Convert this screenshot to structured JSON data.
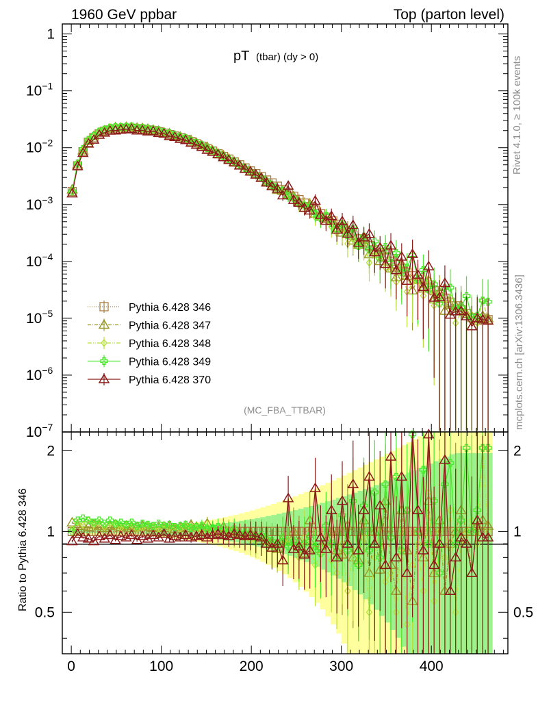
{
  "header": {
    "left": "1960 GeV ppbar",
    "right": "Top (parton level)"
  },
  "side": {
    "rivet": "Rivet 4.1.0, ≥ 100k events",
    "mcplots": "mcplots.cern.ch [arXiv:1306.3436]"
  },
  "chart_data": {
    "type": "line",
    "title_main": "pT",
    "title_sub": "(tbar) (dy > 0)",
    "analysis_tag": "(MC_FBA_TTBAR)",
    "xlabel": "",
    "ylabel_ratio": "Ratio to Pythia 6.428 346",
    "xlim": [
      -10,
      485
    ],
    "ylim_main": [
      1e-07,
      1.5
    ],
    "ylim_ratio": [
      0.35,
      2.35
    ],
    "x_ticks": [
      "0",
      "100",
      "200",
      "300",
      "400"
    ],
    "y_ticks_main": [
      {
        "base": "1",
        "exp": ""
      },
      {
        "base": "10",
        "exp": "−1"
      },
      {
        "base": "10",
        "exp": "−2"
      },
      {
        "base": "10",
        "exp": "−3"
      },
      {
        "base": "10",
        "exp": "−4"
      },
      {
        "base": "10",
        "exp": "−5"
      },
      {
        "base": "10",
        "exp": "−6"
      },
      {
        "base": "10",
        "exp": "−7"
      }
    ],
    "y_ticks_ratio": [
      "2",
      "1",
      "0.5"
    ],
    "bin_width": 6,
    "series": [
      {
        "name": "Pythia 6.428 346",
        "color": "#a87e3d",
        "marker": "square",
        "dash": "1,2",
        "values": [
          0.0017,
          0.0048,
          0.0085,
          0.0125,
          0.015,
          0.0175,
          0.0195,
          0.0205,
          0.0215,
          0.0215,
          0.022,
          0.022,
          0.0215,
          0.021,
          0.0205,
          0.02,
          0.019,
          0.018,
          0.017,
          0.016,
          0.015,
          0.014,
          0.0128,
          0.0117,
          0.0106,
          0.0096,
          0.0087,
          0.0078,
          0.007,
          0.0063,
          0.0056,
          0.005,
          0.0044,
          0.0039,
          0.0035,
          0.0031,
          0.0027,
          0.0024,
          0.0021,
          0.00185,
          0.0016,
          0.0014,
          0.00122,
          0.00106,
          0.00092,
          0.0008,
          0.00069,
          0.0006,
          0.00052,
          0.00045,
          0.00039,
          0.00034,
          0.00029,
          0.00025,
          0.00022,
          0.00019,
          0.00016,
          0.00014,
          0.00012,
          0.0001,
          8.75e-05,
          7.55e-05,
          6.5e-05,
          5.6e-05,
          4.85e-05,
          4.15e-05,
          3.55e-05,
          3.05e-05,
          2.6e-05,
          2.25e-05,
          1.92e-05,
          1.65e-05,
          1.41e-05,
          1.2e-05,
          1.03e-05,
          9.2e-06,
          1e-05,
          9.5e-06
        ]
      },
      {
        "name": "Pythia 6.428 347",
        "color": "#9a9a2a",
        "marker": "triangle",
        "dash": "5,2,1,2",
        "ratios": [
          1.08,
          1.05,
          1.05,
          1.04,
          1.06,
          1.05,
          1.03,
          1.05,
          1.06,
          1.04,
          1.05,
          1.03,
          1.04,
          1.05,
          1.04,
          1.03,
          1.04,
          1.03,
          1.05,
          1.02,
          1.04,
          1.03,
          1.06,
          1.04,
          1.03,
          1.07,
          1.02,
          1.0,
          1.04,
          1.01,
          1.0,
          0.98,
          0.97,
          0.99,
          0.96,
          0.95,
          0.93,
          0.9,
          0.86,
          0.94,
          0.92,
          1.0,
          0.92,
          0.83,
          1.1,
          0.86,
          0.88,
          0.92,
          1.0,
          0.85,
          0.82,
          1.05,
          0.8,
          0.78,
          1.1,
          0.7,
          1.0,
          0.72,
          1.3,
          0.75,
          0.6,
          1.2,
          0.85,
          0.55,
          1.0,
          0.8,
          1.3,
          0.7,
          1.1,
          0.6,
          0.9,
          1.0,
          1.2,
          1.0,
          0.7,
          1.05,
          1.1,
          1.05
        ]
      },
      {
        "name": "Pythia 6.428 348",
        "color": "#b8e03c",
        "marker": "diamond",
        "dash": "6,2,1,2,1,2",
        "ratios": [
          1.02,
          1.08,
          1.06,
          1.1,
          1.06,
          1.08,
          1.04,
          1.07,
          1.06,
          1.03,
          1.05,
          1.06,
          1.02,
          1.03,
          1.05,
          1.04,
          1.02,
          1.06,
          1.03,
          1.04,
          1.02,
          1.05,
          1.03,
          1.02,
          1.0,
          1.04,
          1.0,
          0.98,
          0.99,
          1.02,
          0.96,
          0.97,
          0.95,
          0.93,
          0.92,
          0.95,
          0.9,
          0.88,
          0.86,
          0.9,
          0.93,
          0.88,
          0.8,
          0.95,
          0.9,
          0.75,
          0.82,
          0.95,
          0.78,
          0.7,
          0.9,
          0.6,
          0.85,
          0.75,
          0.95,
          0.5,
          0.8,
          1.1,
          0.65,
          0.7,
          0.5,
          1.0,
          0.45,
          0.75,
          0.9,
          0.6,
          1.4,
          0.55,
          1.0,
          0.8,
          1.2,
          0.5,
          0.9,
          1.0,
          1.1,
          0.9,
          2.05,
          1.0
        ]
      },
      {
        "name": "Pythia 6.428 349",
        "color": "#4ae82c",
        "marker": "cross",
        "dash": "",
        "ratios": [
          1.0,
          1.1,
          1.12,
          1.1,
          1.08,
          1.1,
          1.07,
          1.1,
          1.07,
          1.08,
          1.06,
          1.08,
          1.05,
          1.07,
          1.06,
          1.05,
          1.07,
          1.05,
          1.06,
          1.04,
          1.05,
          1.06,
          1.03,
          1.04,
          1.05,
          1.02,
          1.03,
          1.04,
          1.01,
          1.0,
          1.02,
          0.98,
          0.99,
          0.97,
          0.95,
          0.97,
          0.94,
          0.92,
          0.9,
          0.95,
          0.88,
          0.92,
          0.86,
          0.9,
          0.96,
          0.88,
          0.83,
          1.05,
          0.9,
          0.8,
          1.15,
          0.85,
          1.3,
          0.75,
          1.25,
          0.85,
          1.4,
          0.8,
          1.5,
          0.95,
          1.6,
          0.85,
          1.2,
          2.3,
          1.0,
          1.7,
          0.9,
          1.3,
          0.7,
          1.5,
          1.8,
          0.9,
          1.1,
          2.05,
          1.0,
          1.2,
          2.05,
          2.05
        ]
      },
      {
        "name": "Pythia 6.428 370",
        "color": "#8c1a1a",
        "marker": "triangle",
        "dash": "",
        "ratios": [
          0.92,
          0.98,
          0.95,
          0.94,
          0.92,
          0.96,
          0.94,
          0.97,
          0.93,
          0.96,
          0.95,
          0.97,
          0.93,
          0.96,
          0.94,
          0.97,
          0.95,
          0.98,
          0.94,
          0.96,
          0.95,
          0.97,
          0.95,
          0.96,
          0.97,
          0.95,
          0.97,
          0.98,
          0.97,
          0.96,
          0.98,
          0.97,
          0.96,
          0.97,
          0.96,
          0.95,
          0.9,
          0.87,
          0.9,
          0.78,
          1.33,
          0.86,
          0.88,
          0.82,
          0.85,
          1.45,
          0.95,
          0.86,
          1.2,
          0.8,
          1.3,
          0.9,
          1.5,
          0.85,
          1.2,
          1.6,
          0.9,
          1.25,
          0.75,
          1.9,
          0.8,
          1.6,
          0.7,
          2.4,
          1.2,
          0.85,
          2.3,
          0.75,
          0.9,
          1.85,
          0.6,
          0.8,
          0.95,
          0.9,
          0.7,
          1.1,
          0.95,
          0.95
        ]
      }
    ]
  }
}
